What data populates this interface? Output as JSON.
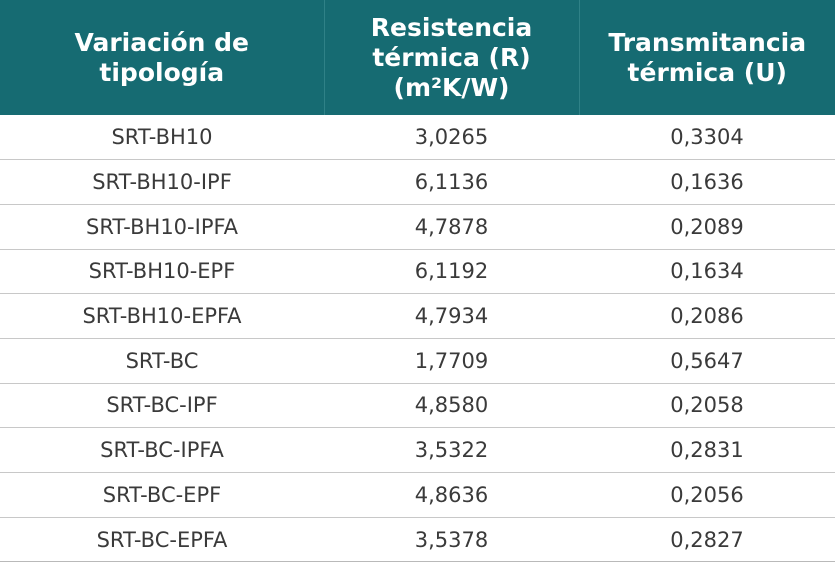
{
  "headers": [
    [
      "Variación de",
      "tipología"
    ],
    [
      "Resistencia",
      "térmica (R)",
      "(m²K/W)"
    ],
    [
      "Transmitancia",
      "térmica (U)"
    ]
  ],
  "rows": [
    [
      "SRT-BH10",
      "3,0265",
      "0,3304"
    ],
    [
      "SRT-BH10-IPF",
      "6,1136",
      "0,1636"
    ],
    [
      "SRT-BH10-IPFA",
      "4,7878",
      "0,2089"
    ],
    [
      "SRT-BH10-EPF",
      "6,1192",
      "0,1634"
    ],
    [
      "SRT-BH10-EPFA",
      "4,7934",
      "0,2086"
    ],
    [
      "SRT-BC",
      "1,7709",
      "0,5647"
    ],
    [
      "SRT-BC-IPF",
      "4,8580",
      "0,2058"
    ],
    [
      "SRT-BC-IPFA",
      "3,5322",
      "0,2831"
    ],
    [
      "SRT-BC-EPF",
      "4,8636",
      "0,2056"
    ],
    [
      "SRT-BC-EPFA",
      "3,5378",
      "0,2827"
    ]
  ],
  "colors": {
    "header_bg": "#166b72",
    "header_text": "#ffffff",
    "cell_text": "#3a3a3a",
    "row_border": "#c8c8c8"
  }
}
